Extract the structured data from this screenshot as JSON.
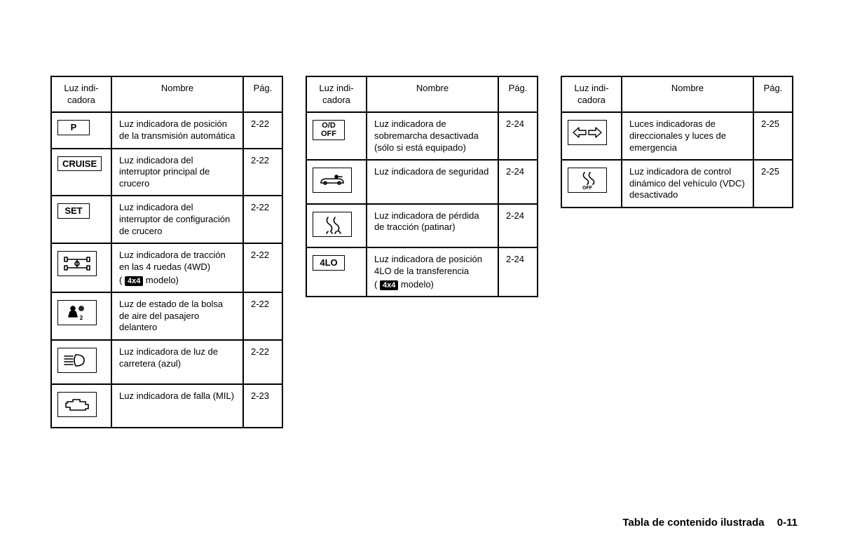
{
  "headers": {
    "icon": "Luz indi-\ncadora",
    "name": "Nombre",
    "page": "Pág."
  },
  "t1": {
    "rows": [
      {
        "icon_text": "P",
        "icon_kind": "text",
        "name": "Luz indicadora de posición de la transmisión automática",
        "page": "2-22"
      },
      {
        "icon_text": "CRUISE",
        "icon_kind": "text",
        "name": "Luz indicadora del interruptor principal de crucero",
        "page": "2-22"
      },
      {
        "icon_text": "SET",
        "icon_kind": "text",
        "name": "Luz indicadora del interruptor de configuración de crucero",
        "page": "2-22"
      },
      {
        "icon_kind": "svg-4wd",
        "name_pre": "Luz indicadora de tracción en las 4 ruedas (4WD)",
        "name_badge": "4x4",
        "name_post": "modelo)",
        "page": "2-22"
      },
      {
        "icon_kind": "svg-airbag",
        "name": "Luz de estado de la bolsa de aire del pasajero delantero",
        "page": "2-22"
      },
      {
        "icon_kind": "svg-highbeam",
        "name": "Luz indicadora de luz de carretera (azul)",
        "page": "2-22"
      },
      {
        "icon_kind": "svg-engine",
        "name": "Luz indicadora de falla (MIL)",
        "page": "2-23"
      }
    ]
  },
  "t2": {
    "rows": [
      {
        "icon_text": "O/D\nOFF",
        "icon_kind": "text2",
        "name": "Luz indicadora de sobremarcha desactivada (sólo si está equipado)",
        "page": "2-24"
      },
      {
        "icon_kind": "svg-carkey",
        "name": "Luz indicadora de seguridad",
        "page": "2-24"
      },
      {
        "icon_kind": "svg-slip",
        "name": "Luz indicadora de pérdida de tracción (patinar)",
        "page": "2-24"
      },
      {
        "icon_text": "4LO",
        "icon_kind": "text",
        "name_pre": "Luz indicadora de posición 4LO de la transferencia",
        "name_badge": "4x4",
        "name_post": "modelo)",
        "page": "2-24"
      }
    ]
  },
  "t3": {
    "rows": [
      {
        "icon_kind": "svg-turn",
        "name": "Luces indicadoras de direccionales y luces de emergencia",
        "page": "2-25"
      },
      {
        "icon_kind": "svg-vdcoff",
        "name": "Luz indicadora de control dinámico del vehículo (VDC) desactivado",
        "page": "2-25"
      }
    ]
  },
  "footer": {
    "title": "Tabla de contenido ilustrada",
    "page": "0-11"
  },
  "svg": {
    "w": 48,
    "h": 28,
    "stroke": "#000",
    "fill": "none",
    "sw": 1.6
  }
}
